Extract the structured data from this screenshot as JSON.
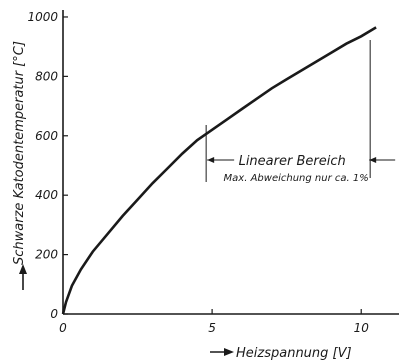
{
  "chart_data": {
    "type": "line",
    "title": "",
    "xlabel": "Heizspannung [V]",
    "ylabel": "Schwarze Katodentemperatur [°C]",
    "xlim": [
      0,
      11.2
    ],
    "ylim": [
      0,
      1010
    ],
    "x_ticks": [
      0,
      5,
      10
    ],
    "y_ticks": [
      0,
      200,
      400,
      600,
      800,
      1000
    ],
    "grid": false,
    "series": [
      {
        "x": [
          0,
          0.1,
          0.3,
          0.6,
          1,
          1.5,
          2,
          2.5,
          3,
          3.5,
          4,
          4.5,
          5,
          5.5,
          6,
          6.5,
          7,
          7.5,
          8,
          8.5,
          9,
          9.5,
          10,
          10.5
        ],
        "y": [
          0,
          40,
          95,
          150,
          210,
          270,
          330,
          385,
          440,
          490,
          540,
          585,
          620,
          655,
          690,
          725,
          760,
          790,
          820,
          850,
          880,
          910,
          935,
          965
        ]
      }
    ],
    "annotations": {
      "range_label": "Linearer Bereich",
      "range_sublabel": "Max. Abweichung nur ca. 1%",
      "range_x": [
        4.8,
        10.3
      ]
    }
  }
}
